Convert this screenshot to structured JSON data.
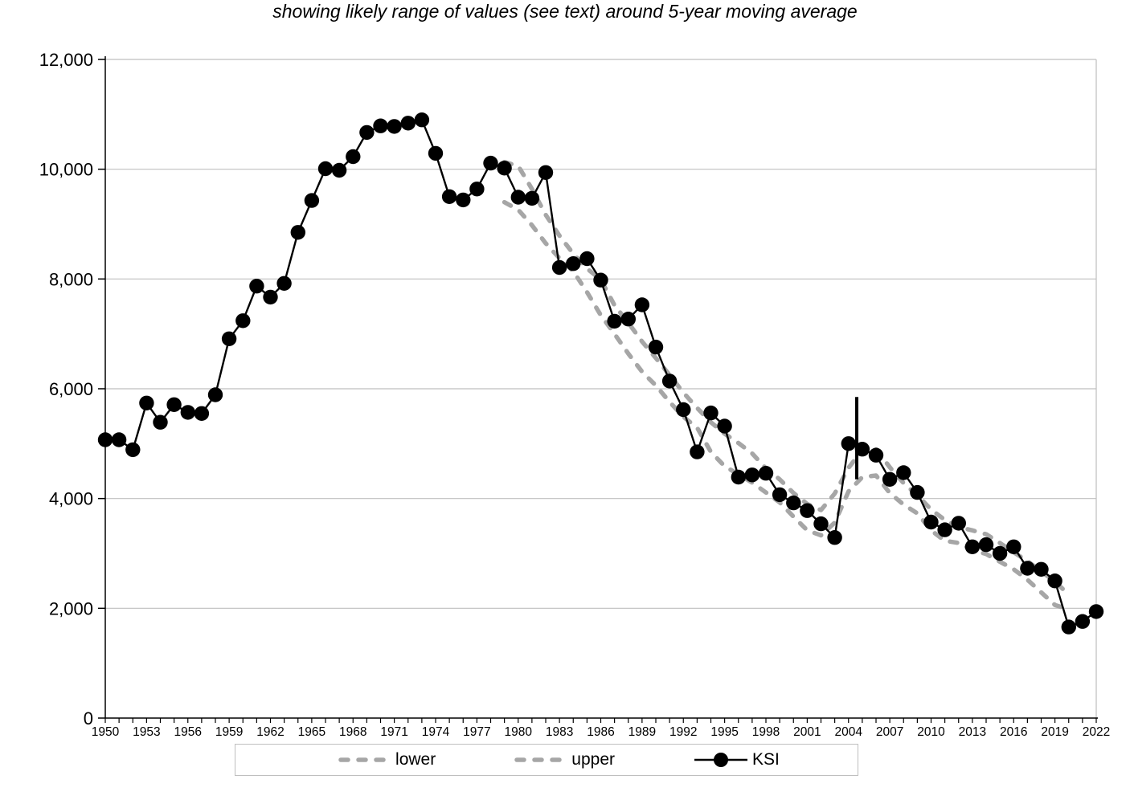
{
  "chart_data": {
    "type": "line",
    "title": "showing likely range of values (see text) around 5-year moving average",
    "ylim": [
      0,
      12000
    ],
    "y_tick_step": 2000,
    "y_tick_labels": [
      "0",
      "2,000",
      "4,000",
      "6,000",
      "8,000",
      "10,000",
      "12,000"
    ],
    "x_label_step": 3,
    "x_tick_labels": [
      "1950",
      "1953",
      "1956",
      "1959",
      "1962",
      "1965",
      "1968",
      "1971",
      "1974",
      "1977",
      "1980",
      "1983",
      "1986",
      "1989",
      "1992",
      "1995",
      "1998",
      "2001",
      "2004",
      "2007",
      "2010",
      "2013",
      "2016",
      "2019",
      "2022"
    ],
    "grid": "horizontal",
    "legend_position": "bottom",
    "x_years": [
      1950,
      1951,
      1952,
      1953,
      1954,
      1955,
      1956,
      1957,
      1958,
      1959,
      1960,
      1961,
      1962,
      1963,
      1964,
      1965,
      1966,
      1967,
      1968,
      1969,
      1970,
      1971,
      1972,
      1973,
      1974,
      1975,
      1976,
      1977,
      1978,
      1979,
      1980,
      1981,
      1982,
      1983,
      1984,
      1985,
      1986,
      1987,
      1988,
      1989,
      1990,
      1991,
      1992,
      1993,
      1994,
      1995,
      1996,
      1997,
      1998,
      1999,
      2000,
      2001,
      2002,
      2003,
      2004,
      2005,
      2006,
      2007,
      2008,
      2009,
      2010,
      2011,
      2012,
      2013,
      2014,
      2015,
      2016,
      2017,
      2018,
      2019,
      2020,
      2021,
      2022
    ],
    "series": [
      {
        "name": "lower",
        "style": "dashed",
        "color": "#a6a6a6",
        "start_year": 1979,
        "values": [
          9400,
          9260,
          8980,
          8650,
          8380,
          8140,
          7760,
          7340,
          7000,
          6640,
          6310,
          6060,
          5760,
          5490,
          5290,
          4850,
          4590,
          4440,
          4290,
          4110,
          3930,
          3670,
          3420,
          3330,
          3560,
          4130,
          4390,
          4420,
          4100,
          3890,
          3730,
          3420,
          3230,
          3190,
          3060,
          2990,
          2850,
          2710,
          2520,
          2290,
          2060,
          1980
        ]
      },
      {
        "name": "upper",
        "style": "dashed",
        "color": "#a6a6a6",
        "start_year": 1979,
        "values": [
          10130,
          10060,
          9640,
          9170,
          8790,
          8460,
          8190,
          7990,
          7520,
          7200,
          6860,
          6560,
          6250,
          5930,
          5650,
          5390,
          5180,
          5010,
          4820,
          4550,
          4350,
          4100,
          3900,
          3790,
          4090,
          4560,
          4880,
          4900,
          4570,
          4280,
          4060,
          3800,
          3610,
          3480,
          3420,
          3350,
          3190,
          3020,
          2860,
          2670,
          2490,
          2250
        ]
      },
      {
        "name": "KSI",
        "style": "solid-markers",
        "color": "#000000",
        "start_year": 1950,
        "values": [
          5070,
          5070,
          4890,
          5740,
          5390,
          5710,
          5570,
          5550,
          5890,
          6910,
          7240,
          7870,
          7670,
          7920,
          8850,
          9430,
          10010,
          9980,
          10230,
          10670,
          10790,
          10780,
          10840,
          10900,
          10290,
          9500,
          9440,
          9640,
          10110,
          10020,
          9490,
          9470,
          9940,
          8210,
          8280,
          8370,
          7980,
          7230,
          7270,
          7530,
          6760,
          6140,
          5620,
          4850,
          5560,
          5320,
          4390,
          4430,
          4460,
          4070,
          3920,
          3780,
          3540,
          3290,
          5000,
          4900,
          4790,
          4350,
          4470,
          4110,
          3570,
          3430,
          3550,
          3120,
          3160,
          3000,
          3120,
          2730,
          2710,
          2500,
          1660,
          1760,
          1940
        ]
      }
    ],
    "annotations": [
      {
        "type": "vline-segment",
        "x_year": 2004.6,
        "y_from": 4350,
        "y_to": 5850
      }
    ]
  },
  "legend": {
    "items": [
      {
        "label": "lower"
      },
      {
        "label": "upper"
      },
      {
        "label": "KSI"
      }
    ]
  }
}
